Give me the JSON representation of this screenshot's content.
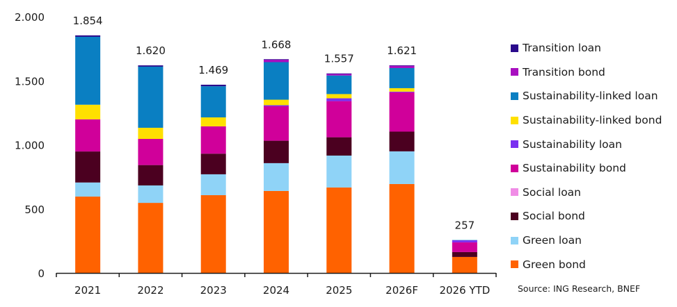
{
  "chart_data": {
    "type": "bar",
    "stacked": true,
    "title": "",
    "xlabel": "",
    "ylabel": "",
    "ylim": [
      0,
      2000
    ],
    "yticks": [
      0,
      500,
      1000,
      1500,
      2000
    ],
    "ytick_labels": [
      "0",
      "500",
      "1.000",
      "1.500",
      "2.000"
    ],
    "grid": false,
    "legend_position": "right",
    "categories": [
      "2021",
      "2022",
      "2023",
      "2024",
      "2025",
      "2026F",
      "2026 YTD"
    ],
    "totals": [
      1854,
      1620,
      1469,
      1668,
      1557,
      1621,
      257
    ],
    "total_labels": [
      "1.854",
      "1.620",
      "1.469",
      "1.668",
      "1.557",
      "1.621",
      "257"
    ],
    "series": [
      {
        "name": "Green bond",
        "color": "#FF6200",
        "values": [
          596,
          547,
          607,
          640,
          667,
          694,
          125
        ]
      },
      {
        "name": "Green loan",
        "color": "#8FD3F7",
        "values": [
          110,
          136,
          163,
          217,
          249,
          255,
          0
        ]
      },
      {
        "name": "Social bond",
        "color": "#4B0020",
        "values": [
          242,
          159,
          161,
          175,
          143,
          154,
          38
        ]
      },
      {
        "name": "Social loan",
        "color": "#F08CE6",
        "values": [
          0,
          0,
          0,
          0,
          0,
          0,
          0
        ]
      },
      {
        "name": "Sustainability bond",
        "color": "#D0009A",
        "values": [
          251,
          204,
          213,
          269,
          282,
          307,
          76
        ]
      },
      {
        "name": "Sustainability loan",
        "color": "#7A30F0",
        "values": [
          0,
          0,
          0,
          8,
          22,
          5,
          16
        ]
      },
      {
        "name": "Sustainability-linked bond",
        "color": "#FFE000",
        "values": [
          114,
          87,
          70,
          43,
          33,
          27,
          0
        ]
      },
      {
        "name": "Sustainability-linked loan",
        "color": "#0A7FC2",
        "values": [
          530,
          477,
          243,
          293,
          145,
          157,
          2
        ]
      },
      {
        "name": "Transition bond",
        "color": "#A80FC0",
        "values": [
          0,
          0,
          0,
          19,
          12,
          18,
          0
        ]
      },
      {
        "name": "Transition loan",
        "color": "#2A0A8C",
        "values": [
          11,
          10,
          12,
          4,
          4,
          4,
          0
        ]
      }
    ],
    "source": "Source: ING Research, BNEF"
  },
  "legend": {
    "items": [
      {
        "label": "Transition loan",
        "color": "#2A0A8C"
      },
      {
        "label": "Transition bond",
        "color": "#A80FC0"
      },
      {
        "label": "Sustainability-linked loan",
        "color": "#0A7FC2"
      },
      {
        "label": "Sustainability-linked bond",
        "color": "#FFE000"
      },
      {
        "label": "Sustainability loan",
        "color": "#7A30F0"
      },
      {
        "label": "Sustainability bond",
        "color": "#D0009A"
      },
      {
        "label": "Social loan",
        "color": "#F08CE6"
      },
      {
        "label": "Social bond",
        "color": "#4B0020"
      },
      {
        "label": "Green loan",
        "color": "#8FD3F7"
      },
      {
        "label": "Green bond",
        "color": "#FF6200"
      }
    ]
  },
  "source": "Source: ING Research, BNEF"
}
